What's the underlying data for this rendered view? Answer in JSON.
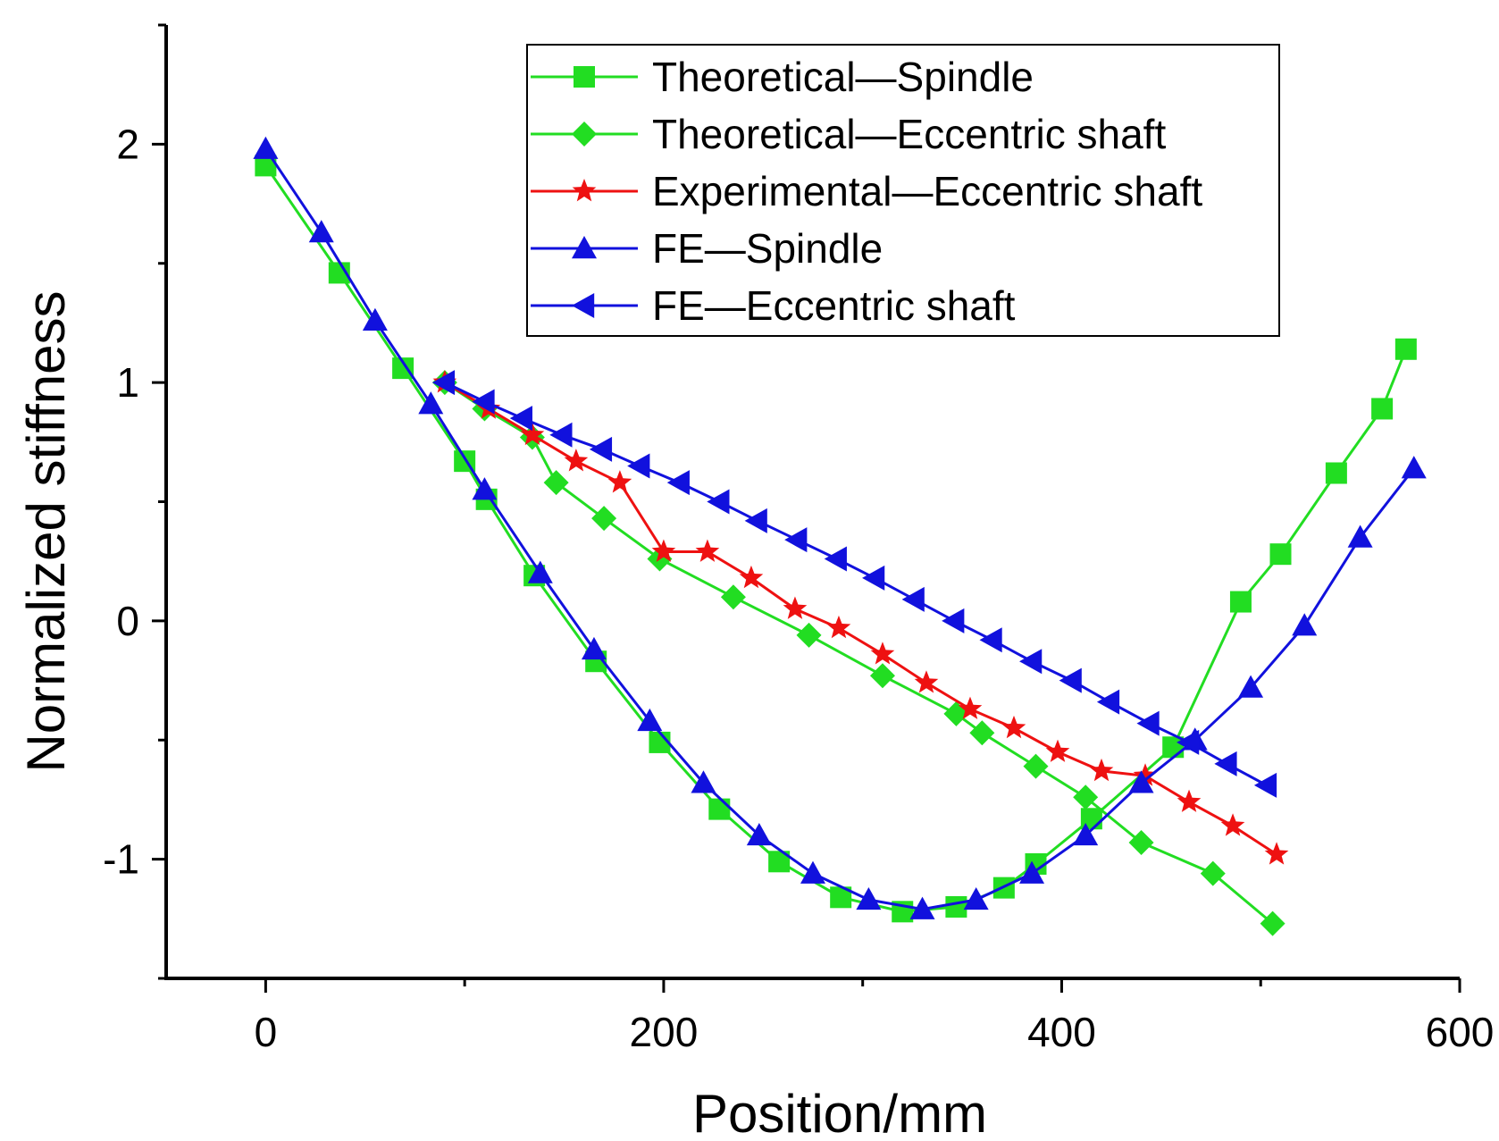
{
  "chart_data": {
    "type": "line",
    "title": "",
    "xlabel": "Position/mm",
    "ylabel": "Normalized stiffness",
    "xlim": [
      -50,
      600
    ],
    "ylim": [
      -1.5,
      2.5
    ],
    "x_ticks": [
      0,
      200,
      400,
      600
    ],
    "y_ticks": [
      -1,
      0,
      1,
      2
    ],
    "x_tick_labels": [
      "0",
      "200",
      "400",
      "600"
    ],
    "y_tick_labels": [
      "-1",
      "0",
      "1",
      "2"
    ],
    "grid": false,
    "legend_position": "top-right",
    "series": [
      {
        "name": "Theoretical—Spindle",
        "color": "#22dd22",
        "marker": "square",
        "x": [
          0,
          37,
          69,
          100,
          111,
          135,
          166,
          198,
          228,
          258,
          289,
          320,
          347,
          371,
          387,
          415,
          456,
          490,
          510,
          538,
          561,
          573
        ],
        "y": [
          1.91,
          1.46,
          1.06,
          0.67,
          0.51,
          0.19,
          -0.17,
          -0.51,
          -0.79,
          -1.01,
          -1.16,
          -1.22,
          -1.2,
          -1.12,
          -1.02,
          -0.83,
          -0.53,
          0.08,
          0.28,
          0.62,
          0.89,
          1.14
        ]
      },
      {
        "name": "Theoretical—Eccentric shaft",
        "color": "#22dd22",
        "marker": "diamond",
        "x": [
          90,
          110,
          134,
          146,
          170,
          198,
          235,
          273,
          310,
          347,
          360,
          387,
          412,
          440,
          476,
          506
        ],
        "y": [
          1.0,
          0.89,
          0.77,
          0.58,
          0.43,
          0.26,
          0.1,
          -0.06,
          -0.23,
          -0.39,
          -0.47,
          -0.61,
          -0.74,
          -0.93,
          -1.06,
          -1.27
        ]
      },
      {
        "name": "Experimental—Eccentric shaft",
        "color": "#ee1111",
        "marker": "star",
        "x": [
          90,
          112,
          134,
          156,
          178,
          200,
          222,
          244,
          266,
          288,
          310,
          332,
          354,
          376,
          398,
          420,
          442,
          464,
          486,
          508
        ],
        "y": [
          1.0,
          0.89,
          0.78,
          0.67,
          0.58,
          0.29,
          0.29,
          0.18,
          0.05,
          -0.03,
          -0.14,
          -0.26,
          -0.37,
          -0.45,
          -0.55,
          -0.63,
          -0.65,
          -0.76,
          -0.86,
          -0.98
        ]
      },
      {
        "name": "FE—Spindle",
        "color": "#1111dd",
        "marker": "triangle-up",
        "x": [
          0,
          28,
          55,
          83,
          110,
          138,
          165,
          193,
          220,
          248,
          275,
          303,
          330,
          357,
          385,
          412,
          440,
          467,
          495,
          522,
          550,
          577
        ],
        "y": [
          1.98,
          1.63,
          1.26,
          0.91,
          0.55,
          0.2,
          -0.12,
          -0.42,
          -0.68,
          -0.9,
          -1.06,
          -1.17,
          -1.21,
          -1.17,
          -1.06,
          -0.9,
          -0.68,
          -0.5,
          -0.28,
          -0.02,
          0.35,
          0.64
        ]
      },
      {
        "name": "FE—Eccentric shaft",
        "color": "#1111dd",
        "marker": "triangle-left",
        "x": [
          90,
          110,
          129,
          149,
          169,
          188,
          208,
          228,
          247,
          267,
          287,
          306,
          326,
          346,
          365,
          385,
          405,
          424,
          444,
          464,
          483,
          503
        ],
        "y": [
          1.0,
          0.92,
          0.85,
          0.78,
          0.72,
          0.65,
          0.58,
          0.5,
          0.42,
          0.34,
          0.26,
          0.18,
          0.09,
          0.0,
          -0.08,
          -0.17,
          -0.25,
          -0.34,
          -0.43,
          -0.51,
          -0.6,
          -0.69
        ]
      }
    ]
  }
}
